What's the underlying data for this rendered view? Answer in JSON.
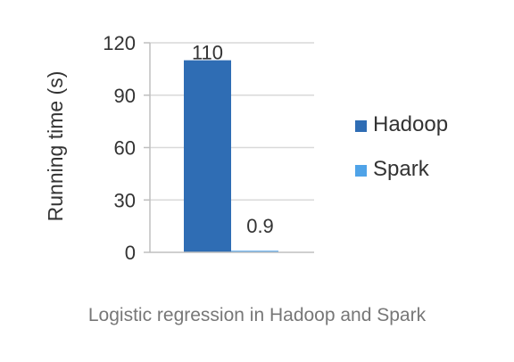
{
  "caption": "Logistic regression in Hadoop and Spark",
  "chart_data": {
    "type": "bar",
    "categories": [
      ""
    ],
    "series": [
      {
        "name": "Hadoop",
        "values": [
          110
        ],
        "color": "#2f6db4"
      },
      {
        "name": "Spark",
        "values": [
          0.9
        ],
        "color": "#4fa3e8"
      }
    ],
    "data_labels": [
      "110",
      "0.9"
    ],
    "title": "",
    "xlabel": "",
    "ylabel": "Running time (s)",
    "ylim": [
      0,
      120
    ],
    "yticks": [
      0,
      30,
      60,
      90,
      120
    ],
    "grid": true,
    "gridColor": "#d9d9d9",
    "axisColor": "#bfbfbf",
    "legend_position": "right"
  }
}
